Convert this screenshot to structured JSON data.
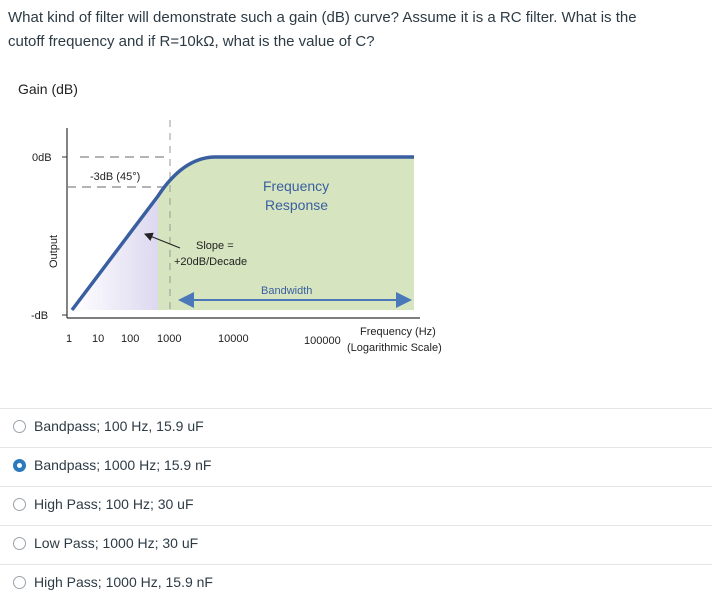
{
  "question": {
    "line1": "What kind of filter will demonstrate such a gain (dB) curve? Assume it is a RC filter. What is the",
    "line2": "cutoff frequency and if R=10kΩ, what is the value of C?"
  },
  "figure": {
    "gain_label": "Gain (dB)",
    "y_tick_0db": "0dB",
    "y_tick_neg": "-dB",
    "y_axis_label": "Output",
    "annotation_3db": "-3dB (45°)",
    "slope_line1": "Slope =",
    "slope_line2": "+20dB/Decade",
    "freq_response_line1": "Frequency",
    "freq_response_line2": "Response",
    "bandwidth_label": "Bandwidth",
    "x_axis_line1": "Frequency (Hz)",
    "x_axis_line2": "(Logarithmic Scale)",
    "x_ticks": [
      "1",
      "10",
      "100",
      "1000",
      "10000",
      "100000"
    ],
    "colors": {
      "curve": "#3a5fa0",
      "passband_fill": "#d6e4bf",
      "stopband_fill": "#e4e0f2",
      "arrow": "#4a78b8"
    }
  },
  "options": [
    {
      "label": "Bandpass; 100 Hz, 15.9 uF",
      "checked": false
    },
    {
      "label": "Bandpass; 1000 Hz; 15.9 nF",
      "checked": true
    },
    {
      "label": "High Pass; 100 Hz; 30 uF",
      "checked": false
    },
    {
      "label": "Low Pass; 1000 Hz; 30 uF",
      "checked": false
    },
    {
      "label": "High Pass; 1000 Hz, 15.9 nF",
      "checked": false
    }
  ]
}
